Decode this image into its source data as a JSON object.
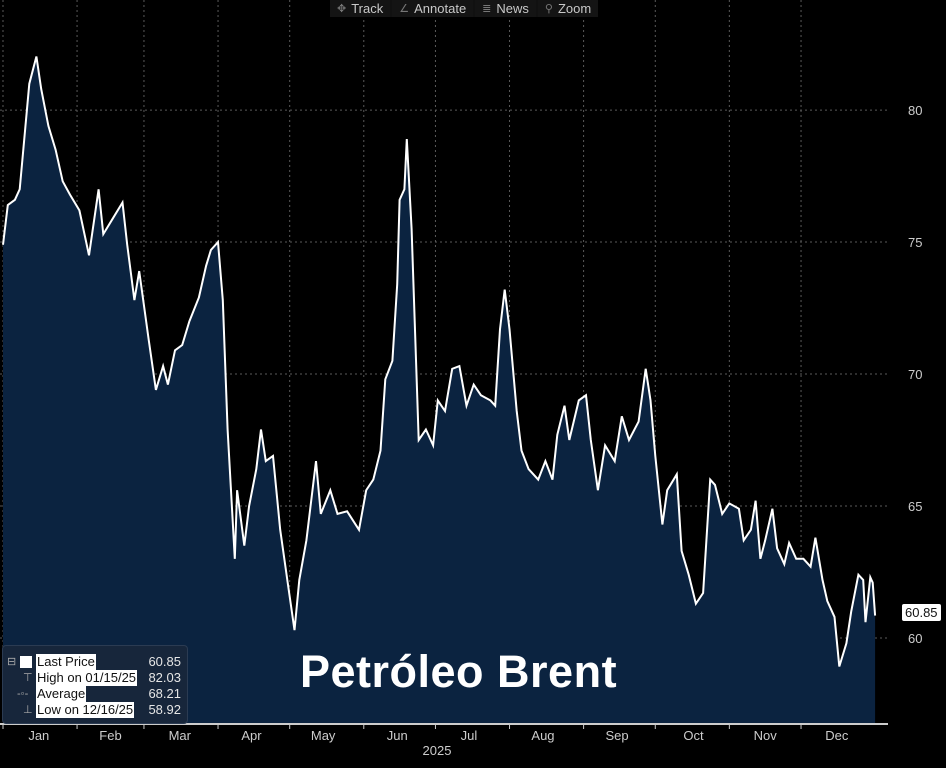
{
  "toolbar": {
    "items": [
      {
        "label": "Track",
        "icon": "crosshair-icon"
      },
      {
        "label": "Annotate",
        "icon": "pencil-icon"
      },
      {
        "label": "News",
        "icon": "news-icon"
      },
      {
        "label": "Zoom",
        "icon": "magnifier-icon"
      }
    ]
  },
  "title": "Petróleo Brent",
  "legend": {
    "last_price": {
      "label": "Last Price",
      "value": "60.85"
    },
    "high": {
      "label": "High on 01/15/25",
      "value": "82.03"
    },
    "average": {
      "label": "Average",
      "value": "68.21"
    },
    "low": {
      "label": "Low on 12/16/25",
      "value": "58.92"
    }
  },
  "last_price_badge": "60.85",
  "colors": {
    "line": "#ffffff",
    "fill": "#0b2340",
    "grid": "#5a5a5a",
    "background": "#000000"
  },
  "chart_data": {
    "type": "area",
    "title": "Petróleo Brent",
    "xlabel": "2025",
    "ylabel": "",
    "x_unit": "day of year 2025",
    "xlim": [
      -1.25,
      370.4
    ],
    "ylim": [
      56.78,
      84.17
    ],
    "y_ticks": [
      "60",
      "65",
      "70",
      "75",
      "80"
    ],
    "x_ticks": [
      {
        "label": "Jan",
        "day": 15
      },
      {
        "label": "Feb",
        "day": 45
      },
      {
        "label": "Mar",
        "day": 74
      },
      {
        "label": "Apr",
        "day": 104
      },
      {
        "label": "May",
        "day": 134
      },
      {
        "label": "Jun",
        "day": 165
      },
      {
        "label": "Jul",
        "day": 195
      },
      {
        "label": "Aug",
        "day": 226
      },
      {
        "label": "Sep",
        "day": 257
      },
      {
        "label": "Oct",
        "day": 289
      },
      {
        "label": "Nov",
        "day": 319
      },
      {
        "label": "Dec",
        "day": 349
      }
    ],
    "month_starts": [
      0,
      31,
      59,
      90,
      120,
      151,
      181,
      212,
      243,
      273,
      304,
      334
    ],
    "grid": true,
    "legend_position": "bottom-left",
    "series": [
      {
        "name": "Last Price",
        "x": [
          0,
          2,
          5,
          7,
          10,
          11,
          14,
          16,
          19,
          22,
          25,
          28,
          32,
          36,
          40,
          42,
          46,
          50,
          52,
          55,
          57,
          61,
          64,
          67,
          69,
          72,
          75,
          78,
          82,
          85,
          87,
          90,
          92,
          94,
          97,
          98,
          101,
          103,
          106,
          108,
          110,
          113,
          116,
          119,
          122,
          124,
          127,
          131,
          133,
          137,
          140,
          144,
          149,
          152,
          155,
          158,
          160,
          163,
          165,
          166,
          168,
          169,
          171,
          174,
          177,
          180,
          182,
          185,
          188,
          191,
          194,
          197,
          200,
          204,
          206,
          208,
          210,
          212,
          215,
          217,
          220,
          224,
          227,
          230,
          232,
          235,
          237,
          241,
          244,
          246,
          249,
          252,
          256,
          259,
          262,
          266,
          269,
          271,
          273,
          276,
          278,
          282,
          284,
          287,
          290,
          293,
          296,
          298,
          301,
          304,
          308,
          310,
          313,
          315,
          317,
          319,
          322,
          324,
          327,
          329,
          332,
          335,
          338,
          340,
          343,
          345,
          348,
          350,
          353,
          355,
          358,
          360,
          361,
          363,
          364,
          365
        ],
        "y": [
          74.9,
          76.4,
          76.6,
          77.0,
          80.0,
          81.0,
          82.03,
          80.8,
          79.4,
          78.5,
          77.3,
          76.8,
          76.2,
          74.5,
          77.0,
          75.3,
          75.9,
          76.5,
          74.9,
          72.8,
          73.9,
          71.3,
          69.4,
          70.3,
          69.6,
          70.9,
          71.1,
          72.0,
          72.9,
          74.1,
          74.7,
          75.0,
          72.8,
          67.9,
          63.0,
          65.6,
          63.5,
          65.0,
          66.4,
          67.9,
          66.7,
          66.9,
          64.1,
          62.2,
          60.3,
          62.2,
          63.7,
          66.7,
          64.7,
          65.6,
          64.7,
          64.8,
          64.1,
          65.6,
          66.0,
          67.1,
          69.8,
          70.5,
          73.4,
          76.6,
          77.0,
          78.9,
          75.5,
          67.5,
          67.9,
          67.3,
          69.0,
          68.6,
          70.2,
          70.3,
          68.8,
          69.6,
          69.2,
          69.0,
          68.8,
          71.7,
          73.2,
          71.7,
          68.6,
          67.1,
          66.4,
          66.0,
          66.7,
          66.0,
          67.7,
          68.8,
          67.5,
          69.0,
          69.2,
          67.5,
          65.6,
          67.3,
          66.7,
          68.4,
          67.5,
          68.2,
          70.2,
          69.0,
          66.9,
          64.3,
          65.6,
          66.2,
          63.3,
          62.4,
          61.3,
          61.7,
          66.0,
          65.8,
          64.7,
          65.1,
          64.9,
          63.7,
          64.1,
          65.2,
          63.0,
          63.7,
          64.9,
          63.4,
          62.8,
          63.6,
          63.0,
          63.0,
          62.7,
          63.8,
          62.2,
          61.4,
          60.8,
          58.92,
          59.8,
          61.0,
          62.4,
          62.2,
          60.6,
          62.3,
          62.1,
          60.85
        ]
      }
    ]
  }
}
